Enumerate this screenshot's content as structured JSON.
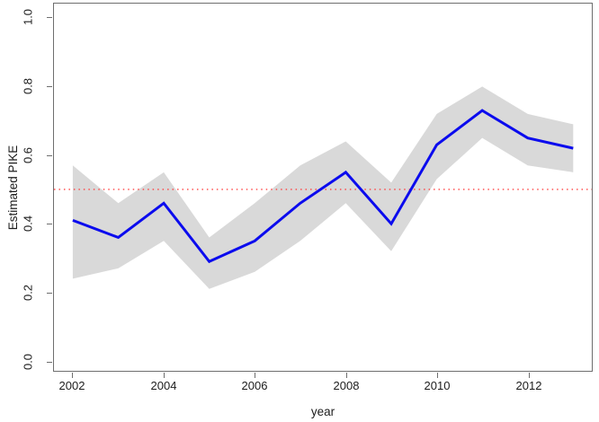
{
  "figure": {
    "xlabel": "year",
    "ylabel": "Estimated PIKE"
  },
  "axes": {
    "x_ticks": [
      "2002",
      "2004",
      "2006",
      "2008",
      "2010",
      "2012"
    ],
    "y_ticks": [
      "0.0",
      "0.2",
      "0.4",
      "0.6",
      "0.8",
      "1.0"
    ]
  },
  "chart_data": {
    "type": "line",
    "title": "",
    "xlabel": "year",
    "ylabel": "Estimated PIKE",
    "x": [
      2002,
      2003,
      2004,
      2005,
      2006,
      2007,
      2008,
      2009,
      2010,
      2011,
      2012,
      2013
    ],
    "series": [
      {
        "name": "Estimated PIKE",
        "style": "solid line",
        "values": [
          0.41,
          0.36,
          0.46,
          0.29,
          0.35,
          0.46,
          0.55,
          0.4,
          0.63,
          0.73,
          0.65,
          0.62
        ]
      },
      {
        "name": "lower confidence bound",
        "style": "band lower edge",
        "values": [
          0.24,
          0.27,
          0.35,
          0.21,
          0.26,
          0.35,
          0.46,
          0.32,
          0.53,
          0.65,
          0.57,
          0.55
        ]
      },
      {
        "name": "upper confidence bound",
        "style": "band upper edge",
        "values": [
          0.57,
          0.46,
          0.55,
          0.36,
          0.46,
          0.57,
          0.64,
          0.52,
          0.72,
          0.8,
          0.72,
          0.69
        ]
      }
    ],
    "reference_line_y": 0.5,
    "xlim": [
      2002,
      2013
    ],
    "ylim": [
      0.0,
      1.0
    ],
    "grid": false,
    "legend": "none",
    "colors": {
      "line": "#0b0bee",
      "band": "#d9d9d9",
      "reference": "#ff4040",
      "axis": "#6e6e6e",
      "text": "#1c1c1c",
      "background": "#ffffff"
    }
  }
}
